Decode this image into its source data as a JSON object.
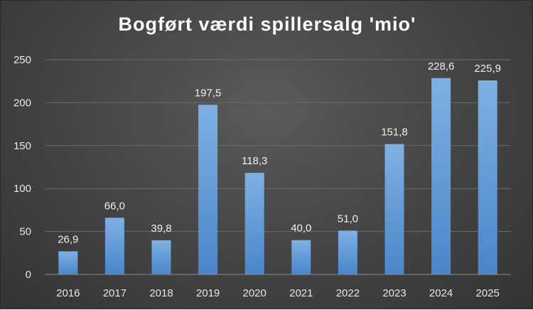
{
  "chart_data": {
    "type": "bar",
    "title": "Bogført værdi spillersalg 'mio'",
    "categories": [
      "2016",
      "2017",
      "2018",
      "2019",
      "2020",
      "2021",
      "2022",
      "2023",
      "2024",
      "2025"
    ],
    "values": [
      26.9,
      66.0,
      39.8,
      197.5,
      118.3,
      40.0,
      51.0,
      151.8,
      228.6,
      225.9
    ],
    "data_labels": [
      "26,9",
      "66,0",
      "39,8",
      "197,5",
      "118,3",
      "40,0",
      "51,0",
      "151,8",
      "228,6",
      "225,9"
    ],
    "xlabel": "",
    "ylabel": "",
    "ylim": [
      0,
      250
    ],
    "yticks": [
      0,
      50,
      100,
      150,
      200,
      250
    ],
    "grid": true,
    "legend": "none",
    "colors": {
      "bar_top": "#7fb0e3",
      "bar_bottom": "#4a86c8",
      "background": "#454545"
    }
  }
}
